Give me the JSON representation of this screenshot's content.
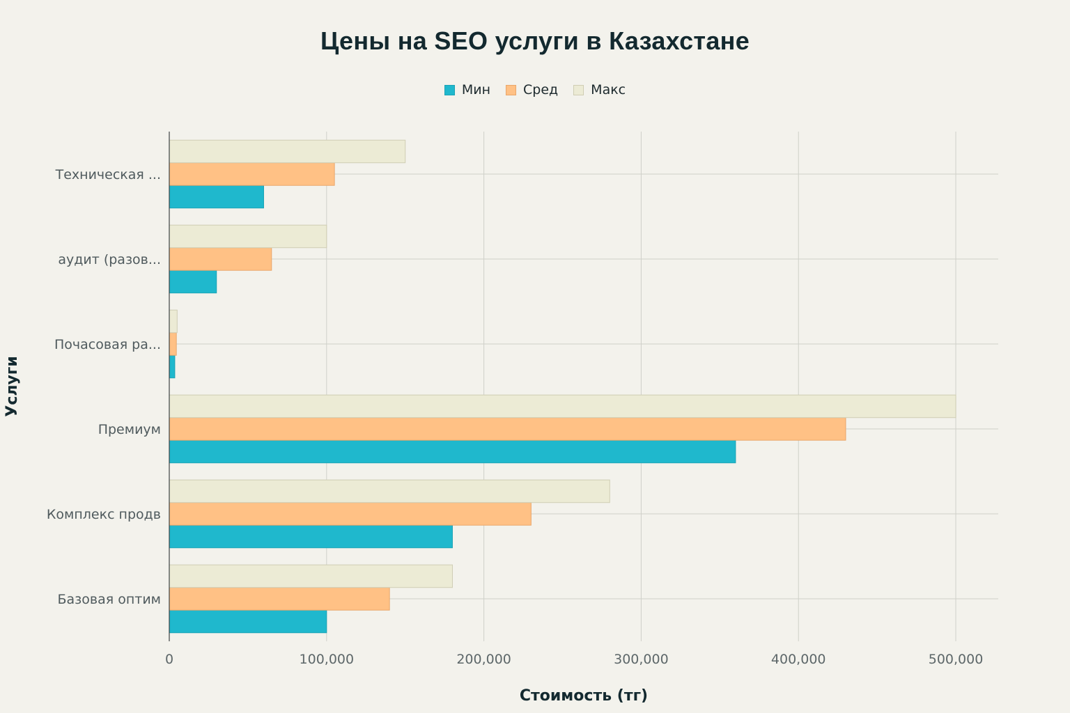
{
  "chart_data": {
    "type": "bar",
    "orientation": "horizontal",
    "title": "Цены на SEO услуги в Казахстане",
    "xlabel": "Стоимость (тг)",
    "ylabel": "Услуги",
    "categories": [
      "Базовая  оптим",
      "Комплекс  продв",
      "Премиум",
      "Почасовая ра...",
      "аудит (разов...",
      "Техническая ..."
    ],
    "series": [
      {
        "name": "Мин",
        "color": "#1fb8cd",
        "values": [
          100000,
          180000,
          360000,
          3500,
          30000,
          60000
        ]
      },
      {
        "name": "Сред",
        "color": "#ffc185",
        "values": [
          140000,
          230000,
          430000,
          4500,
          65000,
          105000
        ]
      },
      {
        "name": "Макс",
        "color": "#ecebd5",
        "values": [
          180000,
          280000,
          500000,
          5000,
          100000,
          150000
        ]
      }
    ],
    "xticks": [
      0,
      100000,
      200000,
      300000,
      400000,
      500000
    ],
    "xtick_labels": [
      "0",
      "100,000",
      "200,000",
      "300,000",
      "400,000",
      "500,000"
    ],
    "xlim": [
      0,
      527000
    ],
    "grid": true,
    "legend_position": "top-center"
  }
}
